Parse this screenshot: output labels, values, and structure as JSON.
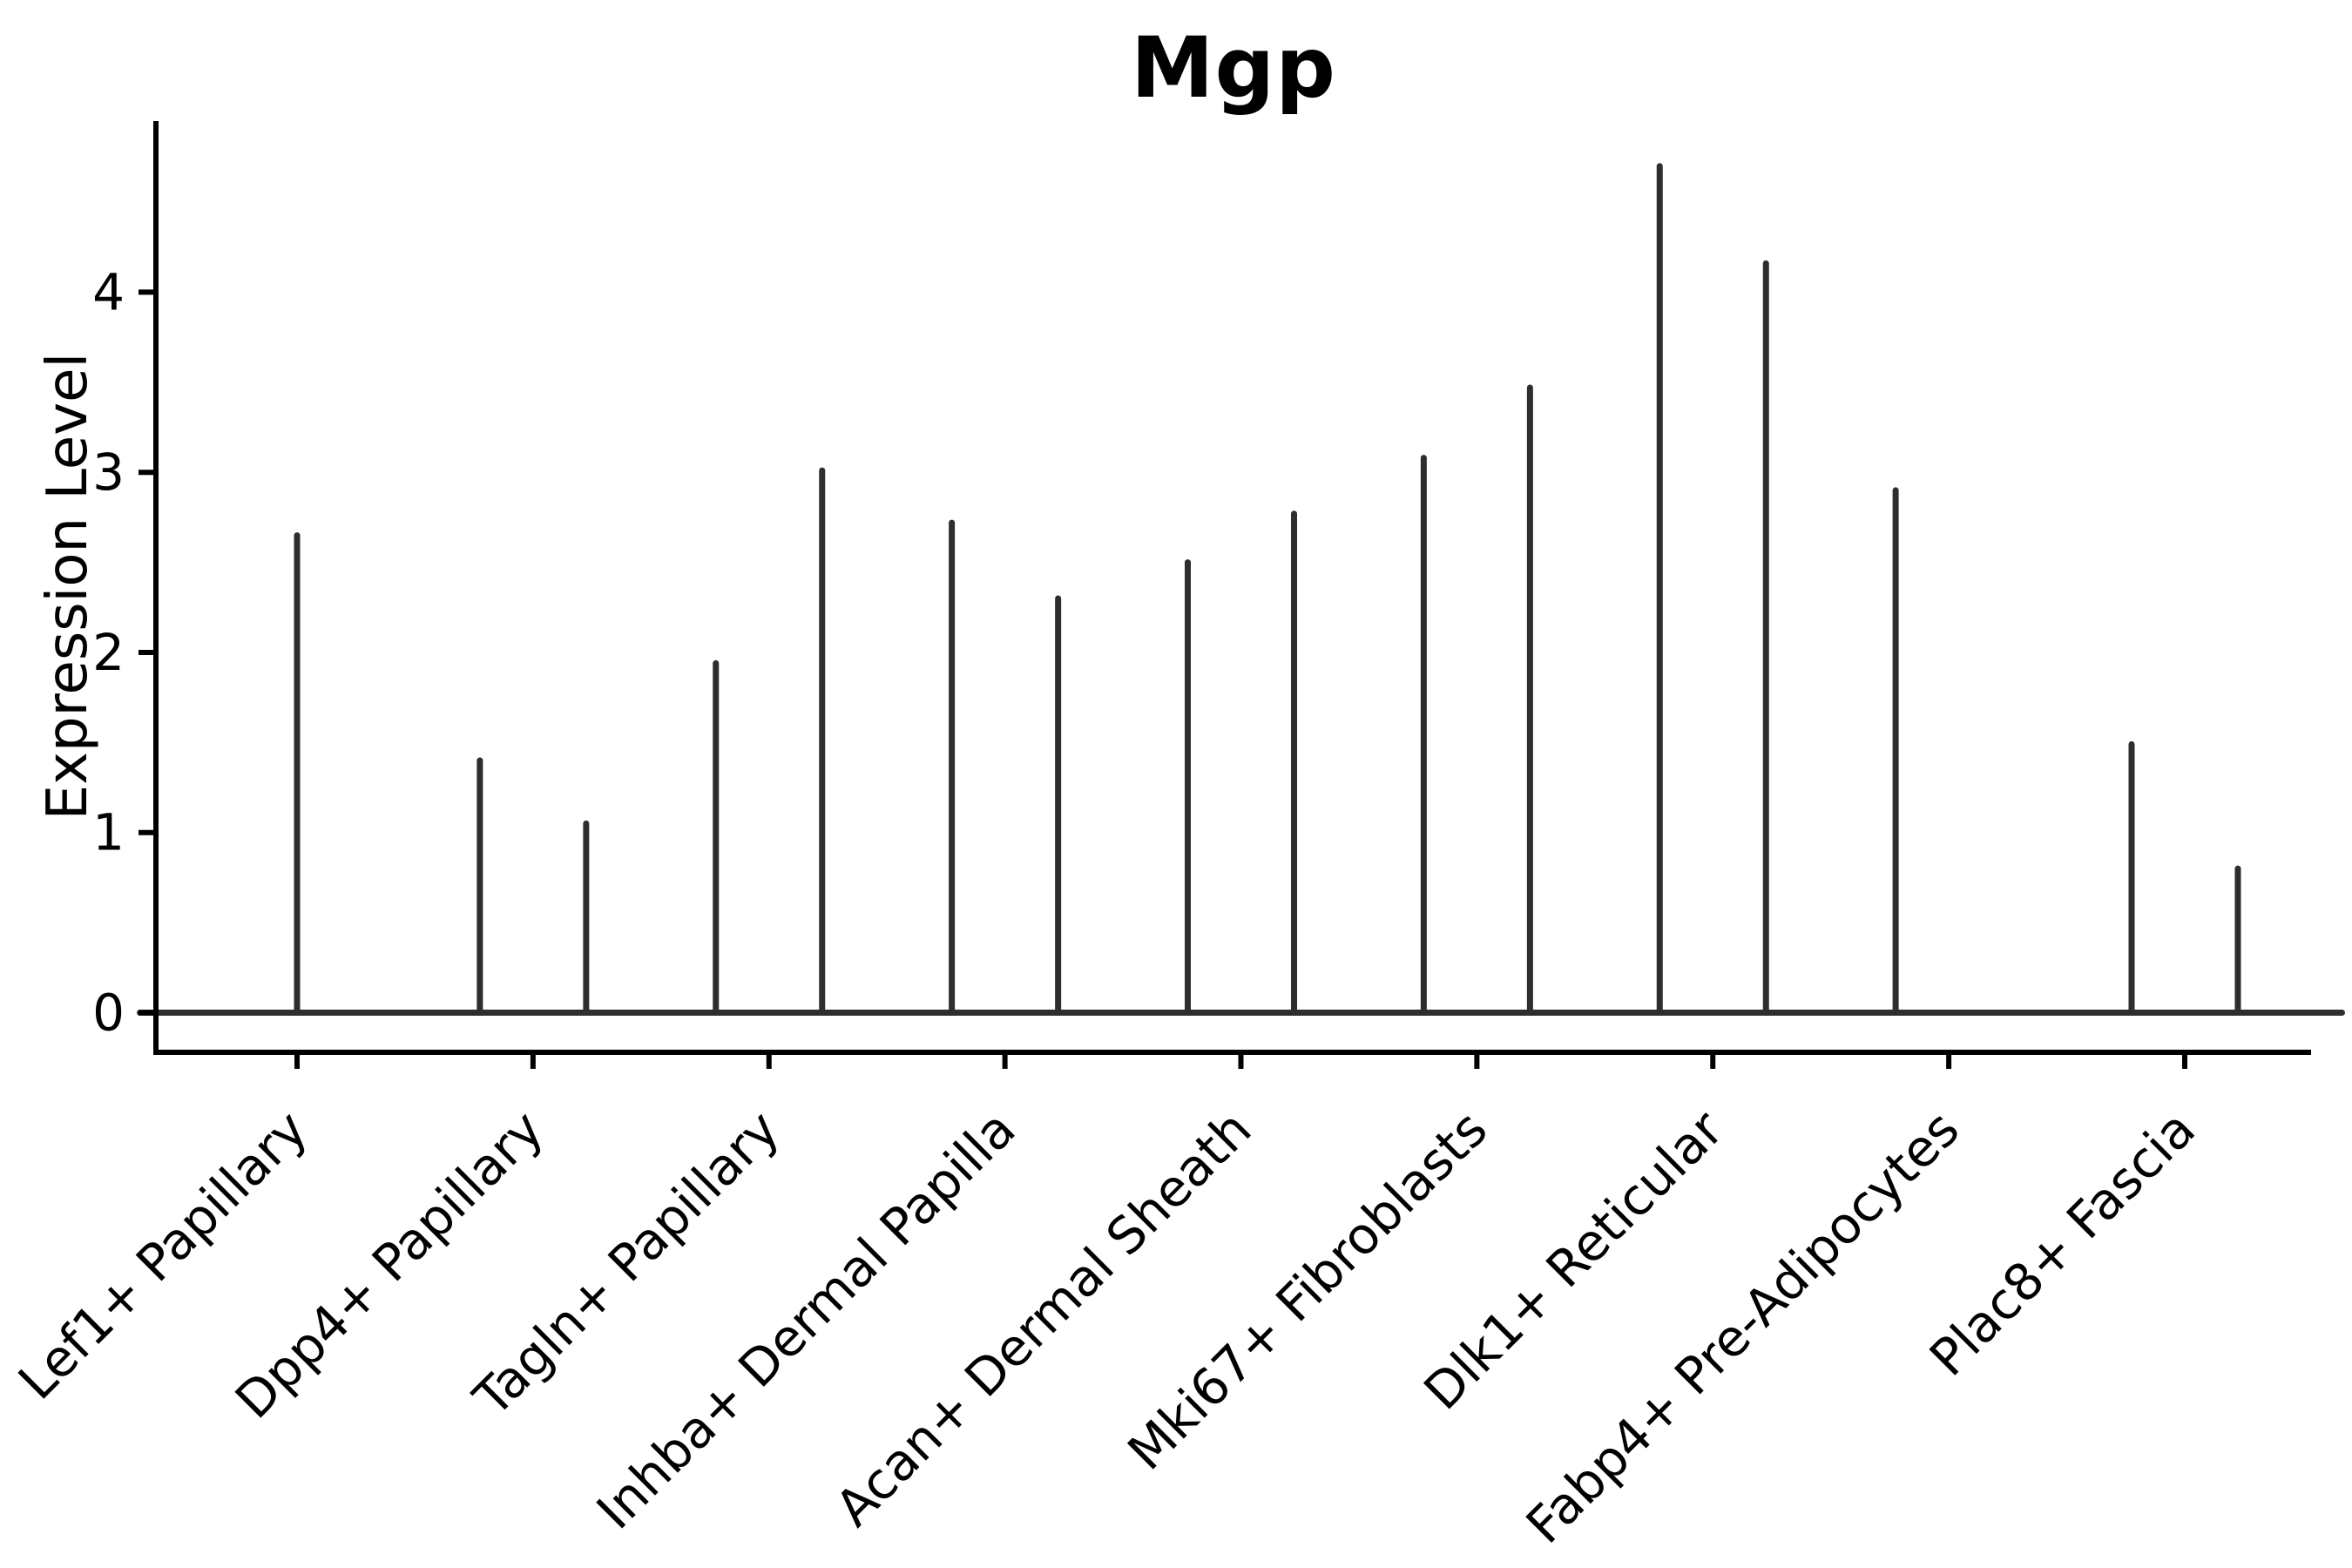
{
  "title": "Mgp",
  "colors": {
    "violin_line": "#2e2e2e",
    "axis": "#000000",
    "text": "#000000",
    "background": "#ffffff"
  },
  "chart_data": {
    "type": "violin",
    "title": "Mgp",
    "xlabel": "",
    "ylabel": "Expression Level",
    "ylim": [
      -0.22,
      4.95
    ],
    "yticks": [
      0,
      1,
      2,
      3,
      4
    ],
    "ytick_labels": [
      "0",
      "1",
      "2",
      "3",
      "4"
    ],
    "grid": false,
    "legend": "none",
    "description": "Violin plot of Mgp expression; most cells at 0 so each violin renders as a flat baseline at 0 with a thin vertical spike up to the maximum expression. Most categories contain two side-by-side violins.",
    "categories": [
      {
        "label": "Lef1+ Papillary",
        "violins": [
          {
            "pos": "center",
            "max": 2.65
          }
        ]
      },
      {
        "label": "Dpp4+ Papillary",
        "violins": [
          {
            "pos": "left",
            "max": 1.4
          },
          {
            "pos": "right",
            "max": 1.05
          }
        ]
      },
      {
        "label": "Tagln+ Papillary",
        "violins": [
          {
            "pos": "left",
            "max": 1.94
          },
          {
            "pos": "right",
            "max": 3.01
          }
        ]
      },
      {
        "label": "Inhba+ Dermal Papilla",
        "violins": [
          {
            "pos": "left",
            "max": 2.72
          },
          {
            "pos": "right",
            "max": 2.3
          }
        ]
      },
      {
        "label": "Acan+ Dermal Sheath",
        "violins": [
          {
            "pos": "left",
            "max": 2.5
          },
          {
            "pos": "right",
            "max": 2.77
          }
        ]
      },
      {
        "label": "Mki67+ Fibroblasts",
        "violins": [
          {
            "pos": "left",
            "max": 3.08
          },
          {
            "pos": "right",
            "max": 3.47
          }
        ]
      },
      {
        "label": "Dlk1+ Reticular",
        "violins": [
          {
            "pos": "left",
            "max": 4.7
          },
          {
            "pos": "right",
            "max": 4.16
          }
        ]
      },
      {
        "label": "Fabp4+ Pre-Adipocytes",
        "violins": [
          {
            "pos": "left",
            "max": 2.9
          },
          {
            "pos": "right",
            "max": 0.0
          }
        ]
      },
      {
        "label": "Plac8+ Fascia",
        "violins": [
          {
            "pos": "left",
            "max": 1.49
          },
          {
            "pos": "right",
            "max": 0.8
          }
        ]
      }
    ]
  }
}
